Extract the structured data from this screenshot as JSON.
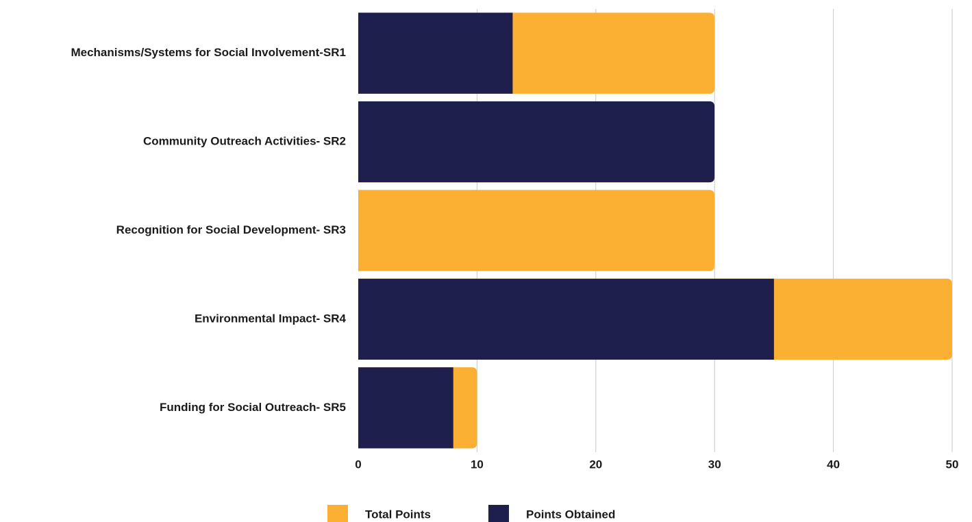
{
  "chart_data": {
    "type": "bar",
    "orientation": "horizontal",
    "barmode": "overlay",
    "categories": [
      "Mechanisms/Systems for Social Involvement-SR1",
      "Community Outreach Activities- SR2",
      "Recognition for Social Development- SR3",
      "Environmental Impact- SR4",
      "Funding for Social Outreach- SR5"
    ],
    "series": [
      {
        "name": "Total Points",
        "color": "#fbb034",
        "values": [
          30,
          30,
          30,
          50,
          10
        ]
      },
      {
        "name": "Points Obtained",
        "color": "#1f1f4d",
        "values": [
          13,
          30,
          0,
          35,
          8
        ]
      }
    ],
    "xlim": [
      0,
      50
    ],
    "xticks": [
      0,
      10,
      20,
      30,
      40,
      50
    ],
    "grid": true,
    "legend": "bottom"
  }
}
